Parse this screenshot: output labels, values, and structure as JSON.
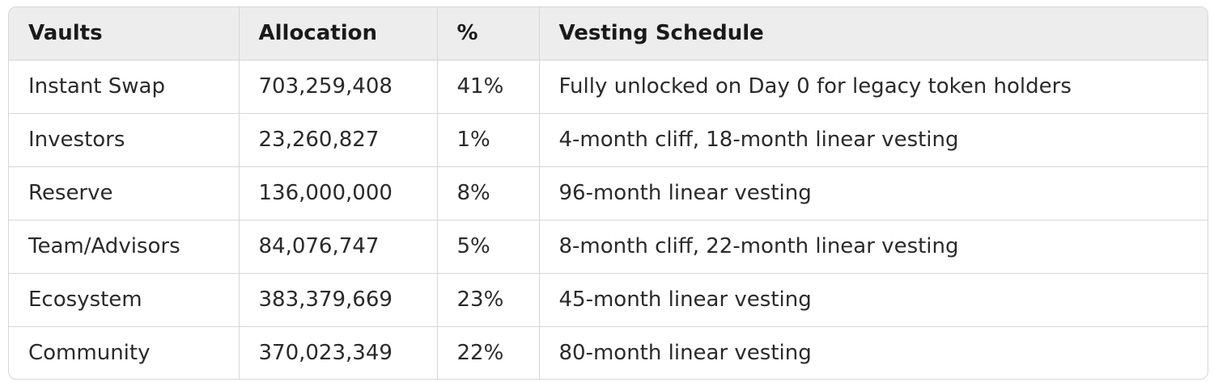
{
  "table": {
    "headers": [
      "Vaults",
      "Allocation",
      "%",
      "Vesting Schedule"
    ],
    "rows": [
      [
        "Instant Swap",
        "703,259,408",
        "41%",
        "Fully unlocked on Day 0 for legacy token holders"
      ],
      [
        "Investors",
        "23,260,827",
        "1%",
        "4-month cliff, 18-month linear vesting"
      ],
      [
        "Reserve",
        "136,000,000",
        "8%",
        "96-month linear vesting"
      ],
      [
        "Team/Advisors",
        "84,076,747",
        "5%",
        "8-month cliff, 22-month linear vesting"
      ],
      [
        "Ecosystem",
        "383,379,669",
        "23%",
        "45-month linear vesting"
      ],
      [
        "Community",
        "370,023,349",
        "22%",
        "80-month linear vesting"
      ]
    ]
  },
  "colors": {
    "header_bg": "#ededed",
    "border": "#d6d6d6",
    "text": "#2a2a2a"
  }
}
